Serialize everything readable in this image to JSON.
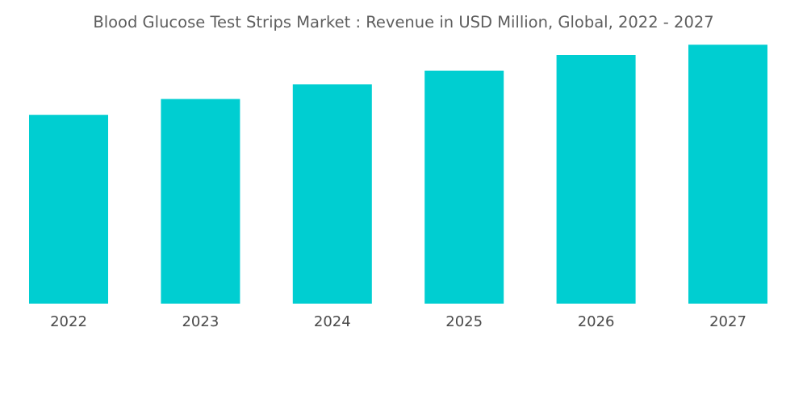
{
  "chart_data": {
    "type": "bar",
    "title": "Blood Glucose Test Strips Market : Revenue in USD Million, Global, 2022 - 2027",
    "categories": [
      "2022",
      "2023",
      "2024",
      "2025",
      "2026",
      "2027"
    ],
    "values": [
      167,
      181,
      194,
      206,
      220,
      229
    ],
    "xlabel": "",
    "ylabel": "",
    "ylim": [
      0,
      240
    ],
    "grid": false,
    "legend": "none",
    "bar_color": "#00ced1"
  }
}
